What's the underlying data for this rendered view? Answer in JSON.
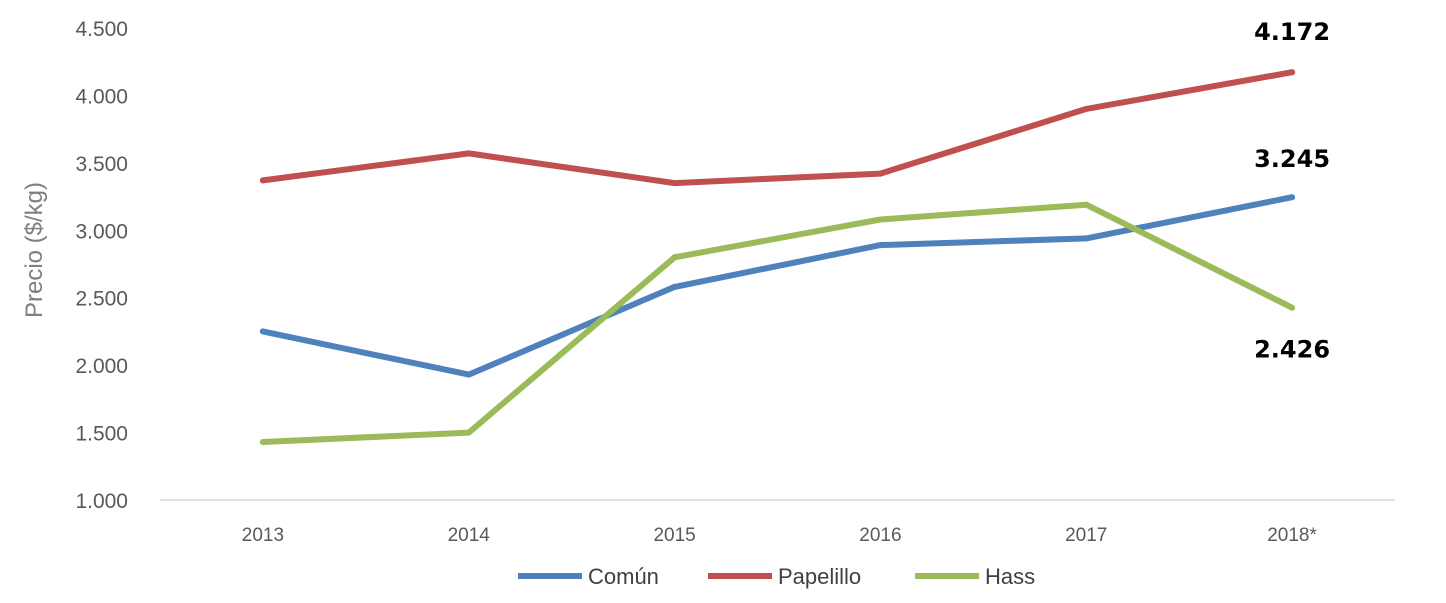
{
  "chart_data": {
    "type": "line",
    "ylabel": "Precio ($/kg)",
    "xlabel": "",
    "categories": [
      "2013",
      "2014",
      "2015",
      "2016",
      "2017",
      "2018*"
    ],
    "yticks": [
      "1.000",
      "1.500",
      "2.000",
      "2.500",
      "3.000",
      "3.500",
      "4.000",
      "4.500"
    ],
    "ylim": [
      1000,
      4500
    ],
    "grid": false,
    "legend_position": "bottom",
    "series": [
      {
        "name": "Común",
        "color": "#4f81bd",
        "values": [
          2250,
          1930,
          2580,
          2890,
          2940,
          3245
        ]
      },
      {
        "name": "Papelillo",
        "color": "#c0504d",
        "values": [
          3370,
          3570,
          3350,
          3420,
          3900,
          4172
        ]
      },
      {
        "name": "Hass",
        "color": "#9bbb59",
        "values": [
          1430,
          1500,
          2800,
          3080,
          3190,
          2426
        ]
      }
    ],
    "data_labels": [
      {
        "series": "Papelillo",
        "category": "2018*",
        "text": "4.172"
      },
      {
        "series": "Común",
        "category": "2018*",
        "text": "3.245"
      },
      {
        "series": "Hass",
        "category": "2018*",
        "text": "2.426"
      }
    ]
  }
}
